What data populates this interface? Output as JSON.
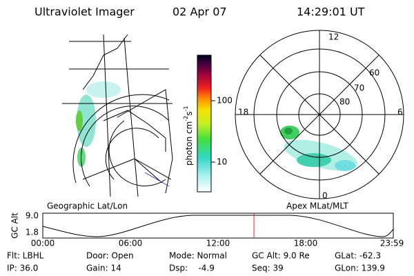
{
  "header": {
    "title": "Ultraviolet Imager",
    "date": "02 Apr 07",
    "time": "14:29:01 UT"
  },
  "colorbar": {
    "unit": "photon cm",
    "exp1": "-2",
    "unit2": "s",
    "exp2": "-1",
    "ticks": [
      "100",
      "10"
    ]
  },
  "geo_panel": {
    "label": "Geographic Lat/Lon"
  },
  "polar_panel": {
    "label": "Apex MLat/MLT",
    "mlt_labels": [
      "12",
      "18",
      "6",
      "0"
    ],
    "lat_labels": [
      "60",
      "70",
      "80"
    ]
  },
  "altitude_plot": {
    "ylabel": "GC Alt",
    "yticks": [
      "9.0",
      "1.8"
    ],
    "xticks": [
      "00:00",
      "06:00",
      "12:00",
      "18:00",
      "23:59"
    ]
  },
  "footer": [
    [
      "Flt: LBHL",
      "Door: Open",
      "Mode: Normal",
      "GC Alt: 9.0 Re",
      "GLat: -62.3"
    ],
    [
      "IP: 36.0",
      "Gain: 14",
      "Dsp:    -4.9",
      "Seq: 39",
      "GLon: 139.9"
    ]
  ]
}
